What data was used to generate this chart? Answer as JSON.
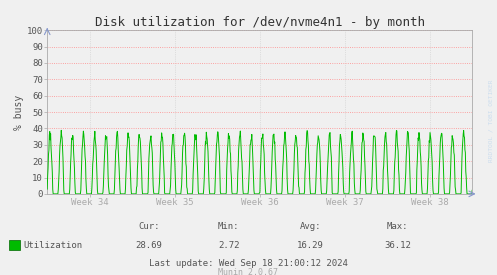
{
  "title": "Disk utilization for /dev/nvme4n1 - by month",
  "ylabel": "% busy",
  "bg_color": "#F0F0F0",
  "plot_bg_color": "#F0F0F0",
  "grid_color_h": "#FF8888",
  "grid_color_v": "#CCCCCC",
  "line_color": "#00BB00",
  "axis_color": "#AAAAAA",
  "text_color": "#555555",
  "ylim": [
    0,
    100
  ],
  "yticks": [
    0,
    10,
    20,
    30,
    40,
    50,
    60,
    70,
    80,
    90,
    100
  ],
  "xtick_labels": [
    "Week 34",
    "Week 35",
    "Week 36",
    "Week 37",
    "Week 38"
  ],
  "legend_label": "Utilization",
  "stats_cur": "28.69",
  "stats_min": "2.72",
  "stats_avg": "16.29",
  "stats_max": "36.12",
  "last_update": "Last update: Wed Sep 18 21:00:12 2024",
  "munin_version": "Munin 2.0.67",
  "watermark": "RRDTOOL / TOBI OETIKER",
  "cycle_max": 35,
  "avg_val": 16.29,
  "title_fontsize": 9,
  "label_fontsize": 7,
  "tick_fontsize": 6.5,
  "stats_fontsize": 6.5,
  "watermark_fontsize": 4.5
}
